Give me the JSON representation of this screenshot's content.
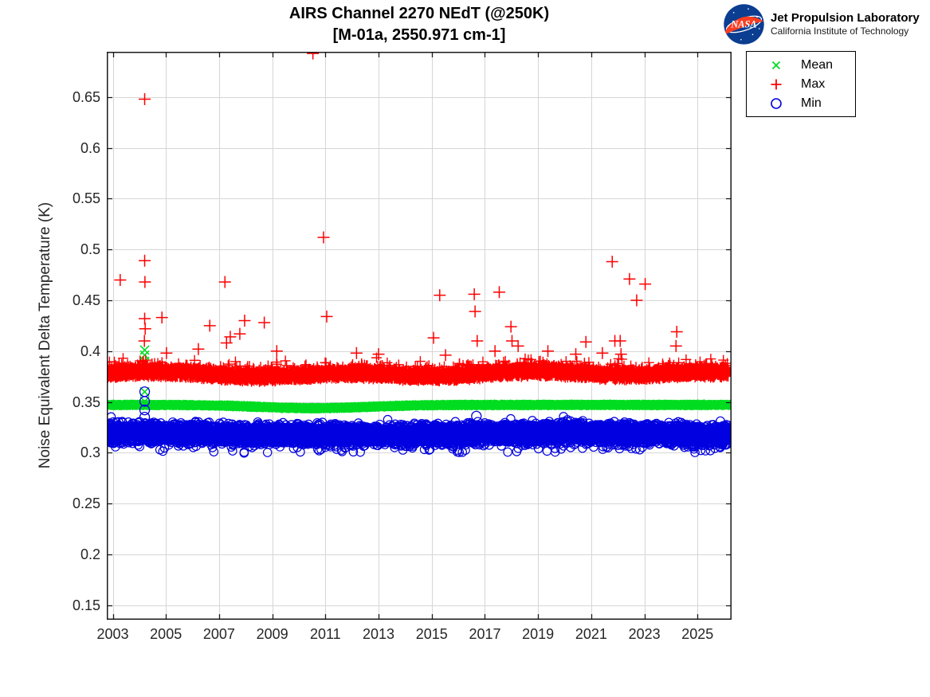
{
  "header": {
    "logo_text": "NASA",
    "org_line1": "Jet Propulsion Laboratory",
    "org_line2": "California Institute of Technology",
    "logo_colors": {
      "disc": "#0b3d91",
      "swoosh": "#fc3d21",
      "text": "#ffffff"
    }
  },
  "chart_data": {
    "type": "scatter",
    "title": "AIRS Channel 2270 NEdT (@250K)",
    "subtitle": "[M-01a, 2550.971 cm-1]",
    "xlabel": "",
    "ylabel": "Noise Equivalent Delta Temperature (K)",
    "xlim": [
      2002.775,
      2026.28
    ],
    "ylim": [
      0.1355,
      0.6947
    ],
    "xticks": [
      2003,
      2005,
      2007,
      2009,
      2011,
      2013,
      2015,
      2017,
      2019,
      2021,
      2023,
      2025
    ],
    "xtick_labels": [
      "2003",
      "2005",
      "2007",
      "2009",
      "2011",
      "2013",
      "2015",
      "2017",
      "2019",
      "2021",
      "2023",
      "2025"
    ],
    "yticks": [
      0.15,
      0.2,
      0.25,
      0.3,
      0.35,
      0.4,
      0.45,
      0.5,
      0.55,
      0.6,
      0.65
    ],
    "ytick_labels": [
      "0.15",
      "0.2",
      "0.25",
      "0.3",
      "0.35",
      "0.4",
      "0.45",
      "0.5",
      "0.55",
      "0.6",
      "0.65"
    ],
    "grid": true,
    "grid_color": "#d6d6d6",
    "axis_color": "#1a1a1a",
    "tick_label_color": "#262626",
    "legend_position": "outside-top-right",
    "data_start_year": 2002.78,
    "data_end_year": 2026.16,
    "samples_per_year": 365,
    "series": [
      {
        "name": "Mean",
        "marker": "x",
        "color": "#00dd22",
        "band": {
          "center": 0.347,
          "dip_year": 2010.6,
          "dip_depth": 0.0032,
          "dip_width": 8,
          "noise": 0.0016
        },
        "outliers": [
          [
            2004.2,
            0.401
          ],
          [
            2004.2,
            0.396
          ],
          [
            2004.2,
            0.39
          ],
          [
            2004.2,
            0.36
          ],
          [
            2004.2,
            0.3505
          ]
        ]
      },
      {
        "name": "Max",
        "marker": "+",
        "color": "#ff0000",
        "band": {
          "center": 0.3775,
          "noise": 0.0055,
          "spike": 0.013,
          "spike_rate": 0.1
        },
        "outliers": [
          [
            2003.28,
            0.47
          ],
          [
            2004.2,
            0.648
          ],
          [
            2004.2,
            0.489
          ],
          [
            2004.21,
            0.468
          ],
          [
            2004.2,
            0.432
          ],
          [
            2004.22,
            0.422
          ],
          [
            2004.19,
            0.41
          ],
          [
            2004.85,
            0.433
          ],
          [
            2005.02,
            0.398
          ],
          [
            2006.22,
            0.402
          ],
          [
            2006.65,
            0.425
          ],
          [
            2007.22,
            0.468
          ],
          [
            2007.28,
            0.408
          ],
          [
            2007.42,
            0.414
          ],
          [
            2007.78,
            0.417
          ],
          [
            2007.96,
            0.43
          ],
          [
            2008.7,
            0.428
          ],
          [
            2009.17,
            0.4
          ],
          [
            2010.53,
            0.693
          ],
          [
            2010.93,
            0.512
          ],
          [
            2011.05,
            0.434
          ],
          [
            2012.17,
            0.398
          ],
          [
            2013.0,
            0.397
          ],
          [
            2015.07,
            0.413
          ],
          [
            2015.3,
            0.455
          ],
          [
            2015.52,
            0.396
          ],
          [
            2016.6,
            0.456
          ],
          [
            2016.63,
            0.439
          ],
          [
            2016.71,
            0.41
          ],
          [
            2017.38,
            0.4
          ],
          [
            2017.54,
            0.458
          ],
          [
            2017.98,
            0.424
          ],
          [
            2018.02,
            0.41
          ],
          [
            2018.25,
            0.405
          ],
          [
            2019.37,
            0.4
          ],
          [
            2020.42,
            0.397
          ],
          [
            2020.8,
            0.409
          ],
          [
            2021.42,
            0.398
          ],
          [
            2021.79,
            0.488
          ],
          [
            2021.89,
            0.41
          ],
          [
            2022.09,
            0.41
          ],
          [
            2022.12,
            0.397
          ],
          [
            2022.44,
            0.471
          ],
          [
            2022.71,
            0.45
          ],
          [
            2023.03,
            0.466
          ],
          [
            2024.19,
            0.405
          ],
          [
            2024.22,
            0.419
          ]
        ]
      },
      {
        "name": "Min",
        "marker": "o",
        "color": "#0000e0",
        "band": {
          "center": 0.3185,
          "noise": 0.0085,
          "dip_rate": 0.045,
          "dip": 0.009,
          "floor": 0.2995
        },
        "outliers": [
          [
            2004.2,
            0.36
          ],
          [
            2004.2,
            0.3505
          ],
          [
            2004.2,
            0.342
          ],
          [
            2004.2,
            0.335
          ],
          [
            2016.68,
            0.336
          ]
        ]
      }
    ]
  },
  "legend": {
    "border_color": "#000000",
    "entries": [
      {
        "label": "Mean",
        "marker": "x",
        "color": "#00dd22"
      },
      {
        "label": "Max",
        "marker": "+",
        "color": "#ff0000"
      },
      {
        "label": "Min",
        "marker": "o",
        "color": "#0000e0"
      }
    ]
  }
}
